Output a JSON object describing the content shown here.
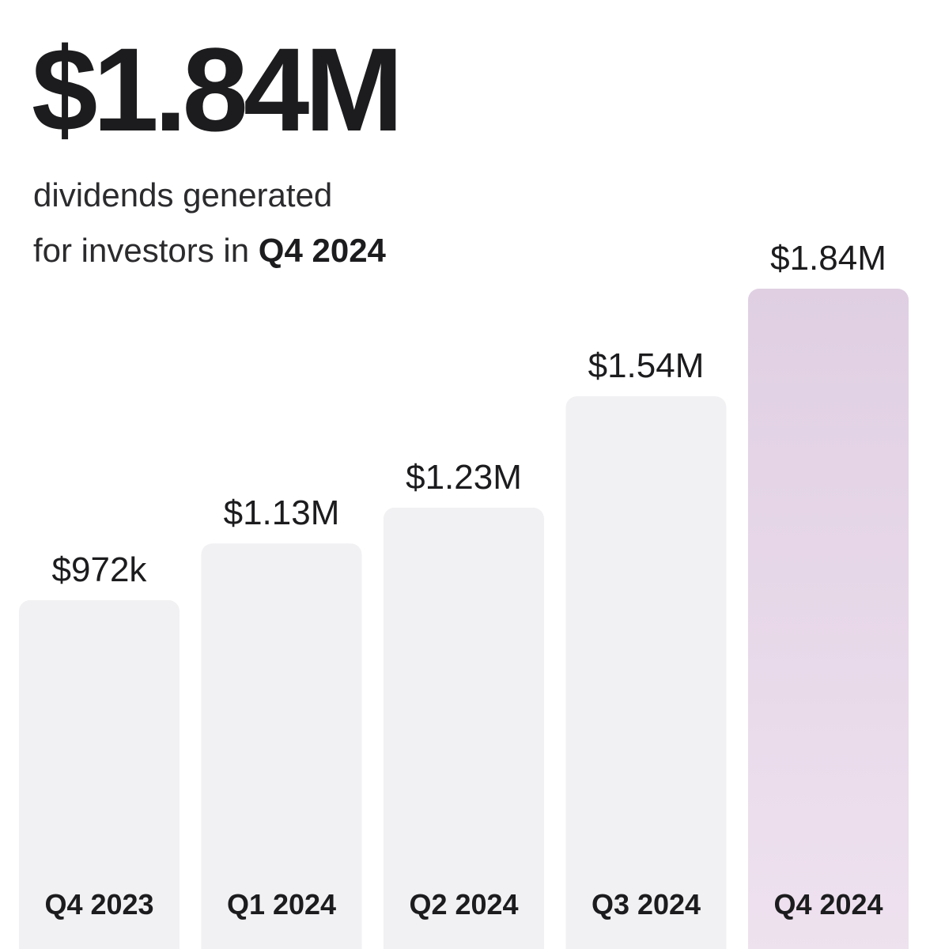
{
  "summary": {
    "headline_value": "$1.84M",
    "caption_line1": "dividends generated",
    "caption_line2_prefix": "for investors in",
    "caption_line2_period": "Q4 2024"
  },
  "colors": {
    "bar": "#f1f1f3",
    "highlight_bar_top": "#e0cfe3",
    "highlight_bar_bottom": "#efe2ef",
    "text": "#1c1c1e"
  },
  "chart_data": {
    "type": "bar",
    "categories": [
      "Q4 2023",
      "Q1 2024",
      "Q2 2024",
      "Q3 2024",
      "Q4 2024"
    ],
    "values": [
      972000,
      1130000,
      1230000,
      1540000,
      1840000
    ],
    "value_labels": [
      "$972k",
      "$1.13M",
      "$1.23M",
      "$1.54M",
      "$1.84M"
    ],
    "highlight_index": 4,
    "title": "",
    "xlabel": "",
    "ylabel": "",
    "grid": false,
    "legend": "none"
  }
}
